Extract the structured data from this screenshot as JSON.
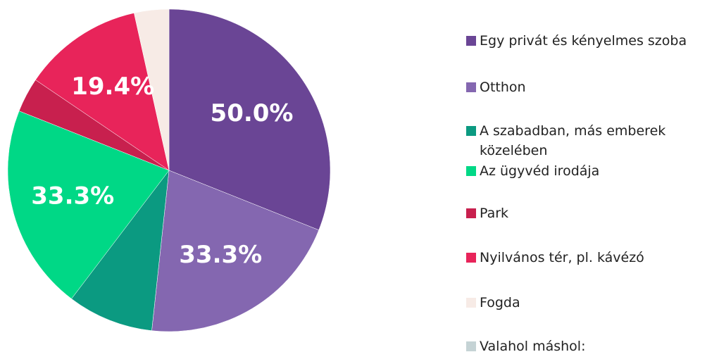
{
  "chart_data": {
    "type": "pie",
    "categories": [
      "Egy privát és kényelmes szoba",
      "Otthon",
      "A szabadban, más emberek közelében",
      "Az ügyvéd irodája",
      "Park",
      "Nyilvános tér, pl. kávézó",
      "Fogda",
      "Valahol máshol:"
    ],
    "values": [
      50.0,
      33.3,
      13.9,
      33.3,
      5.6,
      19.4,
      5.6,
      0
    ],
    "value_labels": [
      "50.0%",
      "33.3%",
      null,
      "33.3%",
      null,
      "19.4%",
      null,
      null
    ],
    "colors": [
      "#6a4595",
      "#8467b0",
      "#0b9a81",
      "#00d886",
      "#c8204e",
      "#e8245a",
      "#f7ebe6",
      "#c5d3d5"
    ],
    "legend": "right"
  }
}
